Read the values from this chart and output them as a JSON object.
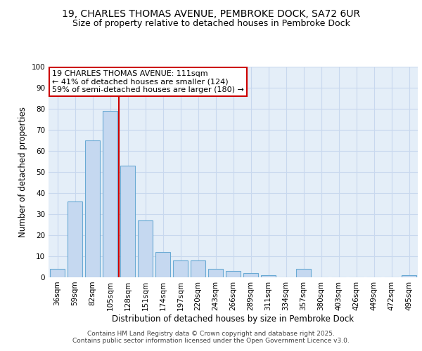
{
  "title_line1": "19, CHARLES THOMAS AVENUE, PEMBROKE DOCK, SA72 6UR",
  "title_line2": "Size of property relative to detached houses in Pembroke Dock",
  "xlabel": "Distribution of detached houses by size in Pembroke Dock",
  "ylabel": "Number of detached properties",
  "categories": [
    "36sqm",
    "59sqm",
    "82sqm",
    "105sqm",
    "128sqm",
    "151sqm",
    "174sqm",
    "197sqm",
    "220sqm",
    "243sqm",
    "266sqm",
    "289sqm",
    "311sqm",
    "334sqm",
    "357sqm",
    "380sqm",
    "403sqm",
    "426sqm",
    "449sqm",
    "472sqm",
    "495sqm"
  ],
  "values": [
    4,
    36,
    65,
    79,
    53,
    27,
    12,
    8,
    8,
    4,
    3,
    2,
    1,
    0,
    4,
    0,
    0,
    0,
    0,
    0,
    1
  ],
  "bar_color": "#c5d8f0",
  "bar_edge_color": "#6aaad4",
  "vline_color": "#cc0000",
  "vline_x": 3.5,
  "annotation_line1": "19 CHARLES THOMAS AVENUE: 111sqm",
  "annotation_line2": "← 41% of detached houses are smaller (124)",
  "annotation_line3": "59% of semi-detached houses are larger (180) →",
  "annotation_box_edge": "#cc0000",
  "ylim": [
    0,
    100
  ],
  "yticks": [
    0,
    10,
    20,
    30,
    40,
    50,
    60,
    70,
    80,
    90,
    100
  ],
  "grid_color": "#c8d8ee",
  "bg_color": "#e4eef8",
  "footer_line1": "Contains HM Land Registry data © Crown copyright and database right 2025.",
  "footer_line2": "Contains public sector information licensed under the Open Government Licence v3.0.",
  "title_fontsize": 10,
  "subtitle_fontsize": 9,
  "label_fontsize": 8.5,
  "tick_fontsize": 7.5,
  "annotation_fontsize": 8,
  "footer_fontsize": 6.5
}
